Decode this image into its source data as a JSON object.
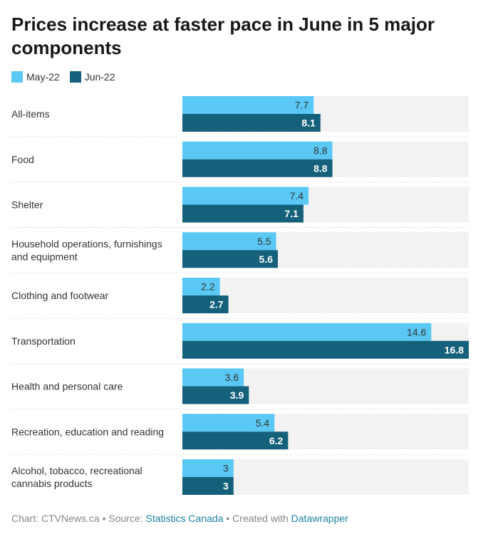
{
  "title": "Prices increase at faster pace in June in 5 major components",
  "colors": {
    "series_1": "#5ac8f5",
    "series_2": "#15607a",
    "track": "#f2f2f2",
    "label_dark": "#333333",
    "label_light": "#ffffff"
  },
  "footer": {
    "chart": "Chart: CTVNews.ca",
    "sep1": " • Source: ",
    "source": "Statistics Canada",
    "sep2": " • Created with ",
    "tool": "Datawrapper"
  },
  "chart_data": {
    "type": "bar",
    "orientation": "horizontal",
    "title": "Prices increase at faster pace in June in 5 major components",
    "xlim": [
      0,
      16.8
    ],
    "grid": false,
    "legend_position": "top-left",
    "categories": [
      "All-items",
      "Food",
      "Shelter",
      "Household operations, furnishings and equipment",
      "Clothing and footwear",
      "Transportation",
      "Health and personal care",
      "Recreation, education and reading",
      "Alcohol, tobacco, recreational cannabis products"
    ],
    "series": [
      {
        "name": "May-22",
        "values": [
          7.7,
          8.8,
          7.4,
          5.5,
          2.2,
          14.6,
          3.6,
          5.4,
          3
        ]
      },
      {
        "name": "Jun-22",
        "values": [
          8.1,
          8.8,
          7.1,
          5.6,
          2.7,
          16.8,
          3.9,
          6.2,
          3
        ]
      }
    ]
  }
}
